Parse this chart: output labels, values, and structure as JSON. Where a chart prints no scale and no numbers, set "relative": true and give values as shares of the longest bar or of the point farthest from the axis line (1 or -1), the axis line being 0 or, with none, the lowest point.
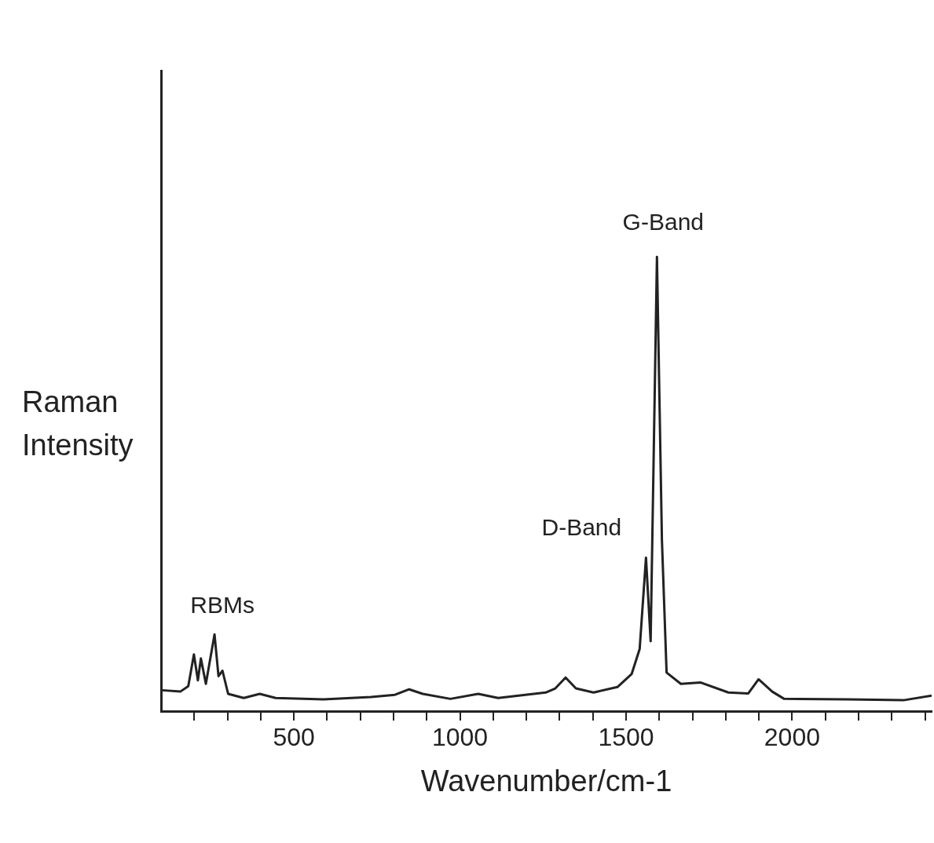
{
  "chart_data": {
    "type": "line",
    "xlabel": "Wavenumber/cm-1",
    "ylabel": "Raman Intensity",
    "relative": true,
    "x": [
      103,
      158,
      182,
      199,
      211,
      220,
      235,
      261,
      273,
      285,
      302,
      349,
      397,
      445,
      589,
      732,
      804,
      847,
      888,
      971,
      1055,
      1115,
      1258,
      1287,
      1318,
      1349,
      1402,
      1474,
      1517,
      1541,
      1560,
      1574,
      1593,
      1608,
      1622,
      1665,
      1725,
      1808,
      1868,
      1899,
      1940,
      1976,
      2167,
      2335,
      2420
    ],
    "series": [
      {
        "color": "#222222",
        "values": [
          0.046,
          0.043,
          0.055,
          0.125,
          0.068,
          0.116,
          0.06,
          0.169,
          0.077,
          0.089,
          0.038,
          0.029,
          0.038,
          0.029,
          0.026,
          0.031,
          0.036,
          0.048,
          0.038,
          0.027,
          0.038,
          0.029,
          0.041,
          0.05,
          0.074,
          0.05,
          0.041,
          0.053,
          0.082,
          0.137,
          0.338,
          0.154,
          1.0,
          0.376,
          0.085,
          0.06,
          0.063,
          0.041,
          0.039,
          0.07,
          0.043,
          0.027,
          0.026,
          0.024,
          0.034
        ]
      }
    ],
    "xlim": [
      100,
      2420
    ],
    "xticks": [
      {
        "value": 200,
        "label": null
      },
      {
        "value": 300,
        "label": null
      },
      {
        "value": 400,
        "label": null
      },
      500,
      {
        "value": 600,
        "label": null
      },
      {
        "value": 700,
        "label": null
      },
      {
        "value": 800,
        "label": null
      },
      {
        "value": 900,
        "label": null
      },
      1000,
      {
        "value": 1100,
        "label": null
      },
      {
        "value": 1200,
        "label": null
      },
      {
        "value": 1300,
        "label": null
      },
      {
        "value": 1400,
        "label": null
      },
      1500,
      {
        "value": 1600,
        "label": null
      },
      {
        "value": 1700,
        "label": null
      },
      {
        "value": 1800,
        "label": null
      },
      {
        "value": 1900,
        "label": null
      },
      2000,
      {
        "value": 2100,
        "label": null
      },
      {
        "value": 2200,
        "label": null
      },
      {
        "value": 2300,
        "label": null
      },
      {
        "value": 2400,
        "label": null
      }
    ],
    "annotations": [
      {
        "text": "RBMs",
        "x": 261,
        "y": 0.169
      },
      {
        "text": "D-Band",
        "x": 1560,
        "y": 0.338
      },
      {
        "text": "G-Band",
        "x": 1593,
        "y": 1.0
      }
    ],
    "grid": false,
    "legend": false,
    "marker": "none",
    "line_style": "solid"
  }
}
